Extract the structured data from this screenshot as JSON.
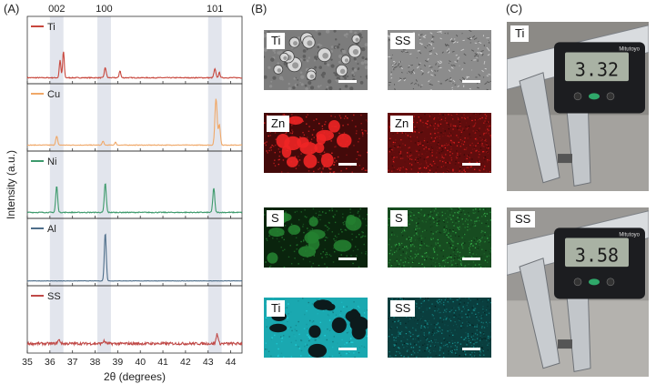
{
  "panels": {
    "a": "(A)",
    "b": "(B)",
    "c": "(C)"
  },
  "chart_data": {
    "type": "line",
    "title": "",
    "xlabel": "2θ (degrees)",
    "ylabel": "Intensity (a.u.)",
    "xlim": [
      35,
      44.5
    ],
    "xticks": [
      35,
      36,
      37,
      38,
      39,
      40,
      41,
      42,
      43,
      44
    ],
    "peak_labels": [
      {
        "text": "002",
        "x": 36.3
      },
      {
        "text": "100",
        "x": 38.4
      },
      {
        "text": "101",
        "x": 43.3
      }
    ],
    "highlight_bands": [
      [
        36.0,
        36.6
      ],
      [
        38.1,
        38.7
      ],
      [
        43.0,
        43.6
      ]
    ],
    "series": [
      {
        "name": "Ti",
        "color": "#c8473d",
        "baseline": 0.04,
        "noise": 0.015,
        "peaks": [
          [
            36.45,
            0.3,
            0.05
          ],
          [
            36.6,
            0.45,
            0.05
          ],
          [
            38.45,
            0.17,
            0.06
          ],
          [
            39.1,
            0.12,
            0.05
          ],
          [
            43.3,
            0.15,
            0.06
          ],
          [
            43.5,
            0.09,
            0.05
          ]
        ]
      },
      {
        "name": "Cu",
        "color": "#f0a868",
        "baseline": 0.04,
        "noise": 0.01,
        "peaks": [
          [
            36.3,
            0.15,
            0.06
          ],
          [
            38.35,
            0.07,
            0.05
          ],
          [
            38.9,
            0.05,
            0.05
          ],
          [
            43.35,
            0.8,
            0.07
          ],
          [
            43.5,
            0.35,
            0.06
          ]
        ]
      },
      {
        "name": "Ni",
        "color": "#3d9a6c",
        "baseline": 0.04,
        "noise": 0.015,
        "peaks": [
          [
            36.3,
            0.45,
            0.06
          ],
          [
            38.45,
            0.5,
            0.06
          ],
          [
            43.25,
            0.42,
            0.06
          ]
        ]
      },
      {
        "name": "Al",
        "color": "#4e6e8a",
        "baseline": 0.02,
        "noise": 0.005,
        "peaks": [
          [
            38.45,
            0.82,
            0.06
          ]
        ]
      },
      {
        "name": "SS",
        "color": "#c04a48",
        "baseline": 0.1,
        "noise": 0.045,
        "peaks": [
          [
            36.4,
            0.06,
            0.08
          ],
          [
            38.4,
            0.04,
            0.08
          ],
          [
            43.4,
            0.17,
            0.06
          ]
        ]
      }
    ]
  },
  "eds_maps": {
    "rows": [
      {
        "left": {
          "label": "Ti",
          "color": "#9a9a9a",
          "kind": "sem-particles"
        },
        "right": {
          "label": "SS",
          "color": "#a8a8a8",
          "kind": "sem-texture"
        }
      },
      {
        "left": {
          "label": "Zn",
          "color": "#d02020",
          "kind": "blobs"
        },
        "right": {
          "label": "Zn",
          "color": "#b01818",
          "kind": "speckle"
        }
      },
      {
        "left": {
          "label": "S",
          "color": "#1f6f2a",
          "kind": "blobs"
        },
        "right": {
          "label": "S",
          "color": "#2a8a3a",
          "kind": "speckle"
        }
      },
      {
        "left": {
          "label": "Ti",
          "color": "#1aa8b0",
          "kind": "holes"
        },
        "right": {
          "label": "SS",
          "color": "#127070",
          "kind": "speckle"
        }
      }
    ]
  },
  "photos": [
    {
      "label": "Ti",
      "reading": "3.32"
    },
    {
      "label": "SS",
      "reading": "3.58"
    }
  ],
  "caliper_brand": "Mitutoyo"
}
